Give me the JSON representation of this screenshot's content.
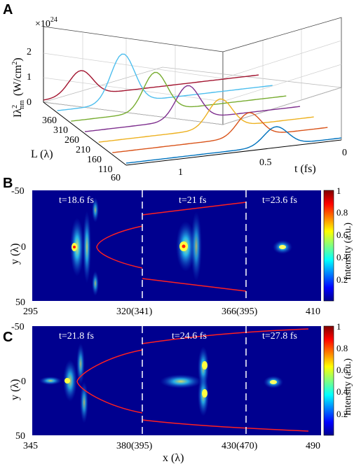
{
  "figure": {
    "panels": [
      {
        "letter": "A"
      },
      {
        "letter": "B"
      },
      {
        "letter": "C"
      }
    ]
  },
  "chart_data": [
    {
      "panel": "A",
      "type": "line",
      "exponent_label": "×10",
      "exponent_power": "24",
      "ylabel_main": "I",
      "ylabel_lambda": "λ",
      "ylabel_sup": "2",
      "ylabel_sub": "nm",
      "ylabel_units": "(W/cm",
      "ylabel_units_sup": "2",
      "ylabel_close": ")",
      "zticks": [
        "0",
        "1",
        "2"
      ],
      "lticks": [
        "360",
        "310",
        "260",
        "210",
        "160",
        "110",
        "60"
      ],
      "tticks": [
        "1",
        "0.5",
        "0"
      ],
      "llabel": "L (λ)",
      "tlabel": "t (fs)",
      "series": [
        {
          "L": 360,
          "color": "#a2142f",
          "peak_t": 0.95,
          "peak_I": 1.0
        },
        {
          "L": 310,
          "color": "#4dbeee",
          "peak_t": 0.8,
          "peak_I": 1.95
        },
        {
          "L": 260,
          "color": "#77ac30",
          "peak_t": 0.7,
          "peak_I": 1.55
        },
        {
          "L": 210,
          "color": "#7e2f8e",
          "peak_t": 0.6,
          "peak_I": 1.35
        },
        {
          "L": 160,
          "color": "#edb120",
          "peak_t": 0.5,
          "peak_I": 1.15
        },
        {
          "L": 110,
          "color": "#d95319",
          "peak_t": 0.42,
          "peak_I": 0.95
        },
        {
          "L": 60,
          "color": "#0072bd",
          "peak_t": 0.35,
          "peak_I": 0.75
        }
      ]
    },
    {
      "panel": "B",
      "type": "heatmap",
      "ylabel": "y (λ)",
      "yticks": [
        "-50",
        "0",
        "50"
      ],
      "xticks": [
        "295",
        "320(341)",
        "366(395)",
        "410"
      ],
      "time_labels": [
        "t=18.6 fs",
        "t=21 fs",
        "t=23.6 fs"
      ],
      "colorbar_label": "Intensity (a.u.)",
      "colorbar_ticks": [
        "1",
        "0.8",
        "0.6",
        "0.4",
        "0.2"
      ]
    },
    {
      "panel": "C",
      "type": "heatmap",
      "ylabel": "y (λ)",
      "xlabel": "x (λ)",
      "yticks": [
        "-50",
        "0",
        "50"
      ],
      "xticks": [
        "345",
        "380(395)",
        "430(470)",
        "490"
      ],
      "time_labels": [
        "t=21.8 fs",
        "t=24.6 fs",
        "t=27.8 fs"
      ],
      "colorbar_label": "Intensity (a.u.)",
      "colorbar_ticks": [
        "1",
        "0.8",
        "0.6",
        "0.4",
        "0.2"
      ]
    }
  ]
}
